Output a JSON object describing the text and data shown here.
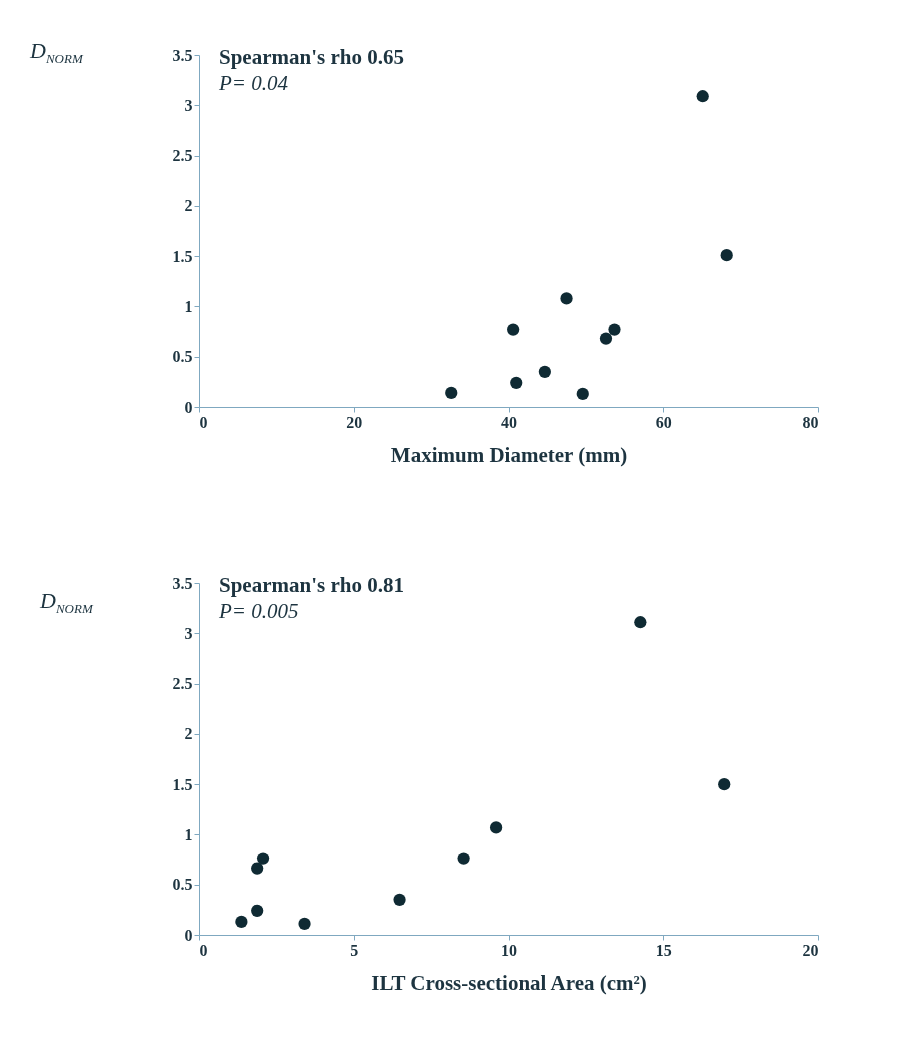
{
  "chart_data": [
    {
      "type": "scatter",
      "xlabel": "Maximum Diameter (mm)",
      "ylabel": "D$_{NORM}$",
      "annotations": [
        "Spearman's rho 0.65",
        "P= 0.04"
      ],
      "x": [
        32.6,
        40.6,
        41.0,
        44.7,
        47.5,
        49.6,
        52.6,
        53.7,
        65.1,
        68.2
      ],
      "series": [
        {
          "color": "#0f2a33",
          "values": [
            0.14,
            0.77,
            0.24,
            0.35,
            1.08,
            0.13,
            0.68,
            0.77,
            3.09,
            1.51
          ]
        }
      ],
      "xlim": [
        0,
        80
      ],
      "xticks": [
        0,
        20,
        40,
        60,
        80
      ],
      "ylim": [
        0,
        3.5
      ],
      "yticks": [
        0,
        0.5,
        1,
        1.5,
        2,
        2.5,
        3,
        3.5
      ],
      "marker": "circle",
      "grid": false
    },
    {
      "type": "scatter",
      "xlabel": "ILT Cross-sectional Area (cm²)",
      "ylabel": "D$_{NORM}$",
      "annotations": [
        "Spearman's rho 0.81",
        "P= 0.005"
      ],
      "x": [
        1.37,
        1.88,
        1.88,
        2.07,
        3.41,
        6.48,
        8.55,
        9.6,
        14.26,
        16.97
      ],
      "series": [
        {
          "color": "#0f2a33",
          "values": [
            0.13,
            0.24,
            0.66,
            0.76,
            0.11,
            0.35,
            0.76,
            1.07,
            3.11,
            1.5
          ]
        }
      ],
      "xlim": [
        0,
        20
      ],
      "xticks": [
        0,
        5,
        10,
        15,
        20
      ],
      "ylim": [
        0,
        3.5
      ],
      "yticks": [
        0,
        0.5,
        1,
        1.5,
        2,
        2.5,
        3,
        3.5
      ],
      "marker": "circle",
      "grid": false
    }
  ]
}
